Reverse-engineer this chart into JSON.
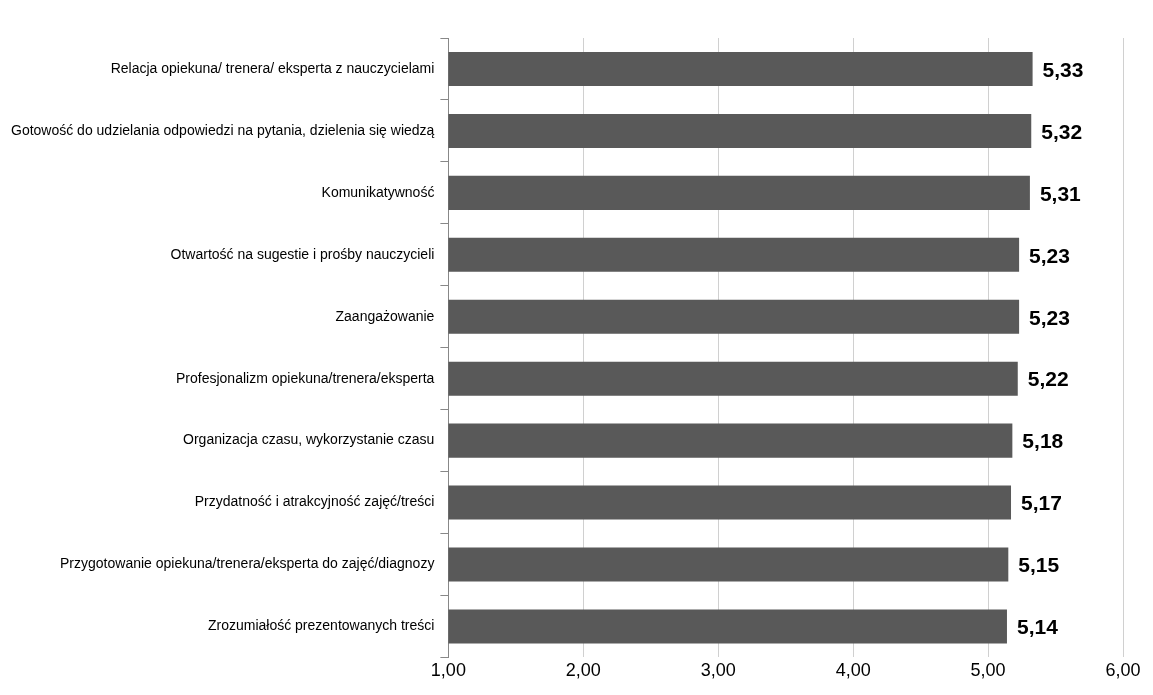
{
  "chart_data": {
    "type": "bar",
    "orientation": "horizontal",
    "categories": [
      "Relacja opiekuna/ trenera/ eksperta z nauczycielami",
      "Gotowość do udzielania odpowiedzi na pytania, dzielenia się wiedzą",
      "Komunikatywność",
      "Otwartość na sugestie i prośby nauczycieli",
      "Zaangażowanie",
      "Profesjonalizm opiekuna/trenera/eksperta",
      "Organizacja czasu, wykorzystanie czasu",
      "Przydatność i atrakcyjność zajęć/treści",
      "Przygotowanie opiekuna/trenera/eksperta do zajęć/diagnozy",
      "Zrozumiałość prezentowanych treści"
    ],
    "values": [
      5.33,
      5.32,
      5.31,
      5.23,
      5.23,
      5.22,
      5.18,
      5.17,
      5.15,
      5.14
    ],
    "value_labels": [
      "5,33",
      "5,32",
      "5,31",
      "5,23",
      "5,23",
      "5,22",
      "5,18",
      "5,17",
      "5,15",
      "5,14"
    ],
    "color": "#595959",
    "xlim": [
      1,
      6
    ],
    "xticks": [
      {
        "value": 1,
        "label": "1,00"
      },
      {
        "value": 2,
        "label": "2,00"
      },
      {
        "value": 3,
        "label": "3,00"
      },
      {
        "value": 4,
        "label": "4,00"
      },
      {
        "value": 5,
        "label": "5,00"
      },
      {
        "value": 6,
        "label": "6,00"
      }
    ],
    "grid": "x"
  }
}
